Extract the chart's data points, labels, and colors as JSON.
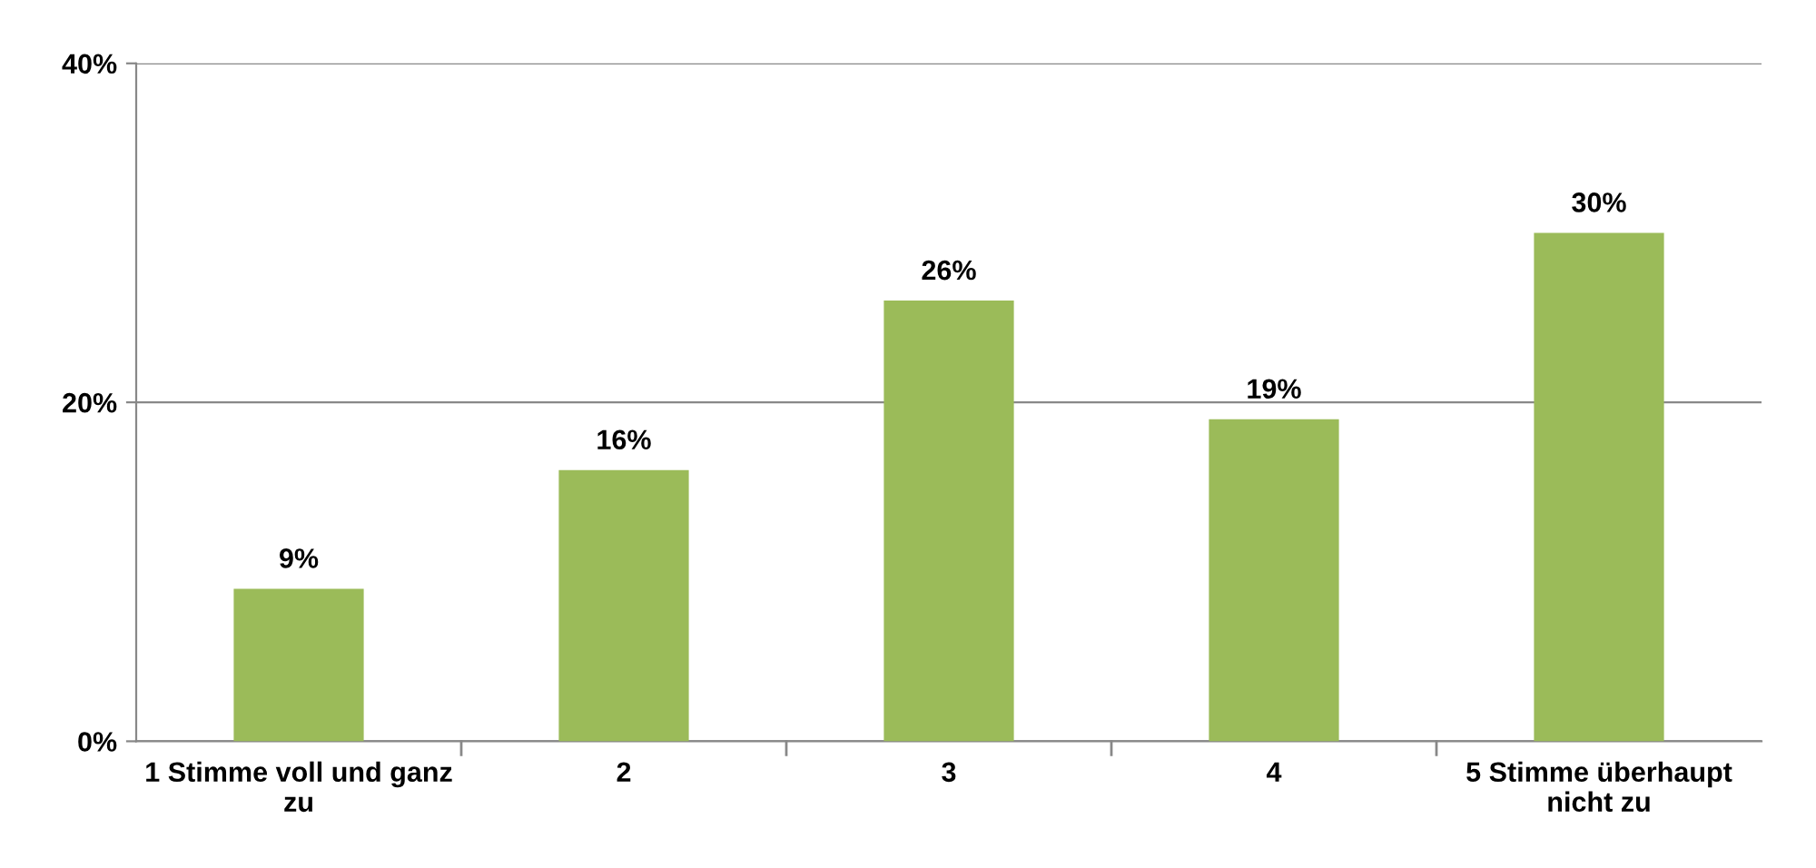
{
  "chart_data": {
    "type": "bar",
    "categories": [
      "1 Stimme voll und ganz\nzu",
      "2",
      "3",
      "4",
      "5 Stimme überhaupt\nnicht zu"
    ],
    "values": [
      9,
      16,
      26,
      19,
      30
    ],
    "value_labels": [
      "9%",
      "16%",
      "26%",
      "19%",
      "30%"
    ],
    "color": "#9bbb59",
    "ylim": [
      0,
      40
    ],
    "yticks": [
      {
        "value": 0,
        "label": "0%"
      },
      {
        "value": 20,
        "label": "20%"
      },
      {
        "value": 40,
        "label": "40%"
      }
    ],
    "grid": "y",
    "legend": false
  }
}
